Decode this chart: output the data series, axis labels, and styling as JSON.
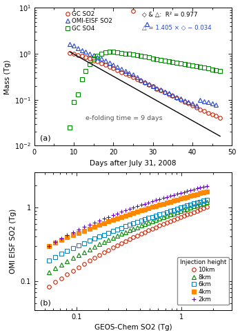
{
  "panel_a": {
    "xlabel": "Days after July 31, 2008",
    "ylabel": "Mass (Tg)",
    "xlim": [
      0,
      50
    ],
    "ylim_log": [
      -2,
      1
    ],
    "label_text": "(a)",
    "annotation": "e-folding time = 9 days",
    "efolding_days": 9,
    "efolding_start_day": 9,
    "efolding_start_val": 1.1,
    "gc_so2_days": [
      9,
      10,
      11,
      12,
      13,
      14,
      15,
      16,
      17,
      18,
      19,
      20,
      21,
      22,
      23,
      24,
      25,
      26,
      27,
      28,
      29,
      30,
      31,
      32,
      33,
      34,
      35,
      36,
      37,
      38,
      39,
      40,
      41,
      42,
      43,
      44,
      45,
      46,
      47
    ],
    "gc_so2_vals": [
      1.05,
      1.0,
      0.95,
      0.9,
      0.85,
      0.78,
      0.72,
      0.68,
      0.62,
      0.57,
      0.52,
      0.48,
      0.44,
      0.4,
      0.37,
      0.34,
      0.31,
      0.28,
      0.26,
      0.235,
      0.215,
      0.195,
      0.175,
      0.16,
      0.145,
      0.132,
      0.12,
      0.11,
      0.1,
      0.09,
      0.082,
      0.075,
      0.068,
      0.062,
      0.057,
      0.052,
      0.048,
      0.044,
      0.04
    ],
    "omi_so2_days": [
      9,
      10,
      11,
      12,
      13,
      14,
      15,
      16,
      17,
      18,
      19,
      20,
      21,
      22,
      23,
      24,
      25,
      26,
      27,
      28,
      29,
      30,
      31,
      32,
      33,
      34,
      35,
      36,
      37,
      38,
      39,
      40,
      41,
      42,
      43,
      44,
      45,
      46
    ],
    "omi_so2_vals": [
      1.6,
      1.5,
      1.3,
      1.2,
      1.1,
      1.0,
      0.95,
      0.85,
      0.78,
      0.72,
      0.65,
      0.58,
      0.52,
      0.47,
      0.43,
      0.38,
      0.35,
      0.31,
      0.27,
      0.24,
      0.22,
      0.2,
      0.18,
      0.165,
      0.15,
      0.138,
      0.125,
      0.115,
      0.105,
      0.095,
      0.088,
      0.082,
      0.076,
      0.1,
      0.094,
      0.088,
      0.082,
      0.078
    ],
    "gc_so4_days": [
      9,
      10,
      11,
      12,
      13,
      14,
      15,
      16,
      17,
      18,
      19,
      20,
      21,
      22,
      23,
      24,
      25,
      26,
      27,
      28,
      29,
      30,
      31,
      32,
      33,
      34,
      35,
      36,
      37,
      38,
      39,
      40,
      41,
      42,
      43,
      44,
      45,
      46,
      47
    ],
    "gc_so4_vals": [
      0.025,
      0.09,
      0.13,
      0.28,
      0.42,
      0.6,
      0.78,
      0.92,
      1.0,
      1.07,
      1.1,
      1.1,
      1.08,
      1.05,
      1.02,
      1.0,
      0.97,
      0.93,
      0.89,
      0.86,
      0.83,
      0.8,
      0.77,
      0.74,
      0.71,
      0.68,
      0.66,
      0.64,
      0.62,
      0.6,
      0.58,
      0.56,
      0.54,
      0.52,
      0.5,
      0.48,
      0.46,
      0.44,
      0.42
    ]
  },
  "panel_b": {
    "xlabel": "GEOS-Chem SO2 (Tg)",
    "ylabel": "OMI EISF SO2 (Tg)",
    "label_text": "(b)",
    "xlim": [
      0.04,
      3.0
    ],
    "ylim": [
      0.04,
      3.0
    ],
    "data_10km_x": [
      0.055,
      0.063,
      0.072,
      0.082,
      0.093,
      0.105,
      0.118,
      0.133,
      0.148,
      0.165,
      0.183,
      0.202,
      0.222,
      0.244,
      0.267,
      0.292,
      0.319,
      0.348,
      0.379,
      0.412,
      0.448,
      0.486,
      0.527,
      0.571,
      0.618,
      0.668,
      0.722,
      0.779,
      0.84,
      0.905,
      0.975,
      1.05,
      1.13,
      1.21,
      1.3,
      1.4,
      1.5,
      1.61,
      1.73
    ],
    "data_10km_y": [
      0.083,
      0.096,
      0.109,
      0.123,
      0.138,
      0.154,
      0.171,
      0.188,
      0.206,
      0.225,
      0.244,
      0.264,
      0.284,
      0.305,
      0.326,
      0.348,
      0.37,
      0.393,
      0.416,
      0.44,
      0.464,
      0.489,
      0.514,
      0.54,
      0.566,
      0.593,
      0.62,
      0.648,
      0.677,
      0.706,
      0.736,
      0.767,
      0.799,
      0.832,
      0.866,
      0.901,
      0.937,
      0.974,
      1.013
    ],
    "data_8km_x": [
      0.055,
      0.063,
      0.072,
      0.082,
      0.093,
      0.105,
      0.118,
      0.133,
      0.148,
      0.165,
      0.183,
      0.202,
      0.222,
      0.244,
      0.267,
      0.292,
      0.319,
      0.348,
      0.379,
      0.412,
      0.448,
      0.486,
      0.527,
      0.571,
      0.618,
      0.668,
      0.722,
      0.779,
      0.84,
      0.905,
      0.975,
      1.05,
      1.13,
      1.21,
      1.3,
      1.4,
      1.5,
      1.61,
      1.73
    ],
    "data_8km_y": [
      0.13,
      0.148,
      0.167,
      0.186,
      0.206,
      0.227,
      0.248,
      0.27,
      0.292,
      0.315,
      0.338,
      0.362,
      0.386,
      0.411,
      0.436,
      0.461,
      0.487,
      0.513,
      0.54,
      0.567,
      0.594,
      0.622,
      0.65,
      0.679,
      0.708,
      0.738,
      0.768,
      0.799,
      0.83,
      0.862,
      0.895,
      0.928,
      0.962,
      0.997,
      1.033,
      1.07,
      1.108,
      1.147,
      1.187
    ],
    "data_6km_x": [
      0.055,
      0.063,
      0.072,
      0.082,
      0.093,
      0.105,
      0.118,
      0.133,
      0.148,
      0.165,
      0.183,
      0.202,
      0.222,
      0.244,
      0.267,
      0.292,
      0.319,
      0.348,
      0.379,
      0.412,
      0.448,
      0.486,
      0.527,
      0.571,
      0.618,
      0.668,
      0.722,
      0.779,
      0.84,
      0.905,
      0.975,
      1.05,
      1.13,
      1.21,
      1.3,
      1.4,
      1.5,
      1.61,
      1.73
    ],
    "data_6km_y": [
      0.19,
      0.212,
      0.234,
      0.257,
      0.28,
      0.303,
      0.327,
      0.351,
      0.375,
      0.4,
      0.425,
      0.45,
      0.475,
      0.501,
      0.527,
      0.553,
      0.579,
      0.606,
      0.633,
      0.66,
      0.688,
      0.716,
      0.744,
      0.773,
      0.802,
      0.832,
      0.862,
      0.893,
      0.924,
      0.956,
      0.989,
      1.022,
      1.056,
      1.091,
      1.127,
      1.163,
      1.2,
      1.238,
      1.277
    ],
    "data_4km_x": [
      0.055,
      0.063,
      0.072,
      0.082,
      0.093,
      0.105,
      0.118,
      0.133,
      0.148,
      0.165,
      0.183,
      0.202,
      0.222,
      0.244,
      0.267,
      0.292,
      0.319,
      0.348,
      0.379,
      0.412,
      0.448,
      0.486,
      0.527,
      0.571,
      0.618,
      0.668,
      0.722,
      0.779,
      0.84,
      0.905,
      0.975,
      1.05,
      1.13,
      1.21,
      1.3,
      1.4,
      1.5,
      1.61,
      1.73
    ],
    "data_4km_y": [
      0.3,
      0.33,
      0.36,
      0.391,
      0.422,
      0.453,
      0.484,
      0.515,
      0.547,
      0.579,
      0.611,
      0.643,
      0.675,
      0.708,
      0.741,
      0.774,
      0.807,
      0.841,
      0.875,
      0.909,
      0.944,
      0.979,
      1.015,
      1.051,
      1.087,
      1.124,
      1.161,
      1.199,
      1.237,
      1.276,
      1.315,
      1.355,
      1.395,
      1.436,
      1.477,
      1.519,
      1.561,
      1.604,
      1.648
    ],
    "data_2km_x": [
      0.055,
      0.063,
      0.072,
      0.082,
      0.093,
      0.105,
      0.118,
      0.133,
      0.148,
      0.165,
      0.183,
      0.202,
      0.222,
      0.244,
      0.267,
      0.292,
      0.319,
      0.348,
      0.379,
      0.412,
      0.448,
      0.486,
      0.527,
      0.571,
      0.618,
      0.668,
      0.722,
      0.779,
      0.84,
      0.905,
      0.975,
      1.05,
      1.13,
      1.21,
      1.3,
      1.4,
      1.5,
      1.61,
      1.73
    ],
    "data_2km_y": [
      0.3,
      0.34,
      0.38,
      0.42,
      0.46,
      0.501,
      0.542,
      0.582,
      0.623,
      0.664,
      0.705,
      0.746,
      0.787,
      0.829,
      0.87,
      0.912,
      0.954,
      0.997,
      1.039,
      1.082,
      1.125,
      1.169,
      1.213,
      1.257,
      1.301,
      1.346,
      1.391,
      1.436,
      1.482,
      1.528,
      1.575,
      1.622,
      1.67,
      1.718,
      1.766,
      1.815,
      1.864,
      1.914,
      1.965
    ]
  },
  "bg_color": "#ffffff",
  "gc_so2_color": "#cc2200",
  "omi_so2_color": "#2244cc",
  "gc_so4_color": "#008800",
  "color_10km": "#cc2200",
  "color_8km": "#008800",
  "color_6km": "#0088cc",
  "color_4km": "#ff8800",
  "color_2km": "#6600cc"
}
